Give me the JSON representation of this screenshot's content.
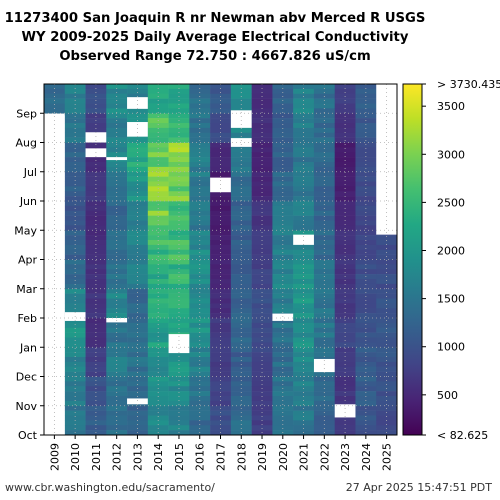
{
  "chart_data": {
    "type": "heatmap",
    "title_lines": [
      "11273400 San Joaquin R nr Newman abv Merced R USGS",
      "WY 2009-2025 Daily Average Electrical Conductivity",
      "Observed Range 72.750 : 4667.826 uS/cm"
    ],
    "x_categories": [
      "2009",
      "2010",
      "2011",
      "2012",
      "2013",
      "2014",
      "2015",
      "2016",
      "2017",
      "2018",
      "2019",
      "2020",
      "2021",
      "2022",
      "2023",
      "2024",
      "2025"
    ],
    "y_categories": [
      "Oct",
      "Nov",
      "Dec",
      "Jan",
      "Feb",
      "Mar",
      "Apr",
      "May",
      "Jun",
      "Jul",
      "Aug",
      "Sep"
    ],
    "monthly_values": [
      [
        null,
        null,
        null,
        null,
        null,
        null,
        null,
        null,
        null,
        null,
        null,
        1300
      ],
      [
        1500,
        1600,
        1700,
        1900,
        1750,
        1300,
        1200,
        1050,
        1150,
        1300,
        1500,
        1700
      ],
      [
        1150,
        1000,
        750,
        550,
        650,
        600,
        550,
        550,
        650,
        550,
        750,
        950
      ],
      [
        1400,
        1500,
        1650,
        1450,
        1700,
        1450,
        1400,
        1300,
        1450,
        1700,
        1650,
        1800
      ],
      [
        1200,
        1300,
        1450,
        1350,
        1300,
        1650,
        1700,
        1700,
        1950,
        2300,
        1900,
        1700
      ],
      [
        1750,
        1850,
        1900,
        2100,
        2250,
        2300,
        2550,
        2900,
        3000,
        2950,
        2700,
        2300
      ],
      [
        1700,
        1850,
        2000,
        2300,
        2550,
        2450,
        2550,
        2650,
        2950,
        3100,
        2450,
        2150
      ],
      [
        1300,
        1500,
        1700,
        1900,
        1800,
        1850,
        1800,
        1550,
        1600,
        1650,
        1500,
        1400
      ],
      [
        950,
        800,
        750,
        700,
        550,
        450,
        400,
        350,
        350,
        500,
        900,
        1100
      ],
      [
        1350,
        1200,
        1150,
        1250,
        1200,
        1100,
        1150,
        1200,
        1400,
        1600,
        1750,
        1800
      ],
      [
        750,
        700,
        850,
        900,
        950,
        800,
        700,
        650,
        500,
        450,
        600,
        550
      ],
      [
        1500,
        1450,
        1400,
        1500,
        1600,
        1750,
        1650,
        1550,
        1400,
        1250,
        1150,
        1250
      ],
      [
        1550,
        1650,
        1750,
        1900,
        1950,
        2000,
        1850,
        1600,
        1500,
        1550,
        1600,
        1700
      ],
      [
        1250,
        1350,
        1450,
        1500,
        1450,
        1400,
        1350,
        1250,
        1200,
        1300,
        1350,
        1400
      ],
      [
        700,
        650,
        700,
        850,
        700,
        650,
        600,
        500,
        400,
        350,
        600,
        750
      ],
      [
        1050,
        1150,
        1100,
        1000,
        950,
        950,
        900,
        850,
        900,
        950,
        1050,
        1150
      ],
      [
        900,
        1000,
        1050,
        1050,
        1000,
        950,
        900,
        null,
        null,
        null,
        null,
        null
      ]
    ],
    "missing_blocks": [
      {
        "year": "2009",
        "from_month": 0,
        "to_month": 10.93
      },
      {
        "year": "2025",
        "from_month": 6.85,
        "to_month": 12
      },
      {
        "year": "2010",
        "from_month": 3.9,
        "to_month": 4.2
      },
      {
        "year": "2011",
        "from_month": 9.5,
        "to_month": 9.8
      },
      {
        "year": "2011",
        "from_month": 10.0,
        "to_month": 10.35
      },
      {
        "year": "2012",
        "from_month": 9.4,
        "to_month": 9.5
      },
      {
        "year": "2012",
        "from_month": 3.85,
        "to_month": 4.0
      },
      {
        "year": "2013",
        "from_month": 10.2,
        "to_month": 10.7
      },
      {
        "year": "2013",
        "from_month": 11.15,
        "to_month": 11.55
      },
      {
        "year": "2013",
        "from_month": 1.05,
        "to_month": 1.25
      },
      {
        "year": "2015",
        "from_month": 2.8,
        "to_month": 3.45
      },
      {
        "year": "2017",
        "from_month": 8.3,
        "to_month": 8.8
      },
      {
        "year": "2018",
        "from_month": 10.5,
        "to_month": 11.1
      },
      {
        "year": "2018",
        "from_month": 9.85,
        "to_month": 10.15
      },
      {
        "year": "2020",
        "from_month": 3.9,
        "to_month": 4.15
      },
      {
        "year": "2021",
        "from_month": 6.5,
        "to_month": 6.85
      },
      {
        "year": "2022",
        "from_month": 2.15,
        "to_month": 2.6
      },
      {
        "year": "2023",
        "from_month": 0.6,
        "to_month": 1.05
      }
    ],
    "colorbar": {
      "min_label": "< 82.625",
      "max_label": "> 3730.435",
      "vmin": 82.625,
      "vmax": 3730.435,
      "ticks": [
        500,
        1000,
        1500,
        2000,
        2500,
        3000,
        3500
      ],
      "colormap": "viridis"
    },
    "grid": true
  },
  "footer": {
    "left": "www.cbr.washington.edu/sacramento/",
    "right": "27 Apr 2025 15:47:51 PDT"
  }
}
